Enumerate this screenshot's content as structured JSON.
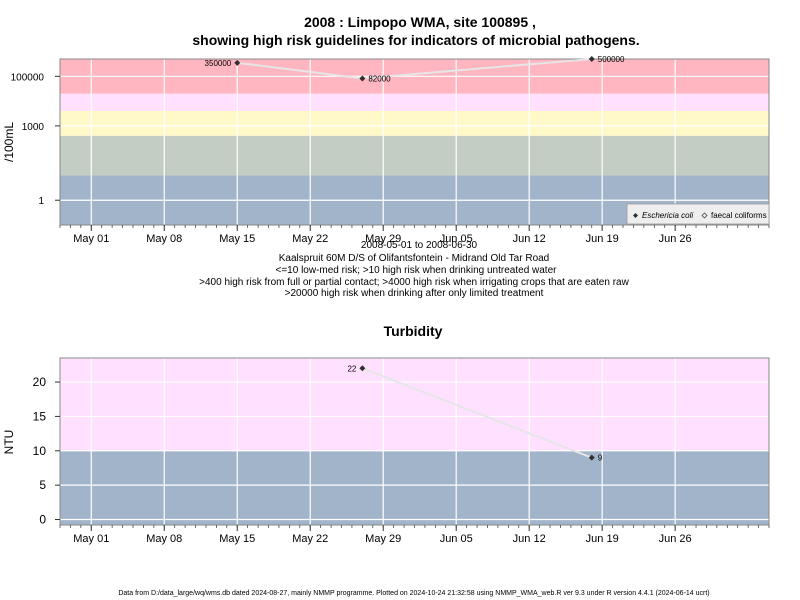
{
  "colors": {
    "red": "#ffb6c1",
    "pink": "#ffe0ff",
    "yellow": "#fff8c8",
    "sage": "#c4cdc4",
    "blue": "#a2b4ca",
    "grid": "#ffffff",
    "line": "#e6e6e6",
    "point": "#303030"
  },
  "footer": "Data from D:/data_large/wq/wms.db dated 2024-08-27, mainly NMMP programme. Plotted on 2024-10-24 21:32:58 using NMMP_WMA_web.R ver 9.3 under R version 4.4.1 (2024-06-14 ucrt)",
  "chart_data": [
    {
      "type": "line",
      "title": "2008 : Limpopo WMA, site 100895 ,",
      "title2": "showing high risk guidelines for indicators of microbial pathogens.",
      "ylabel": "/100mL",
      "y_scale": "log10",
      "ylim": [
        0.1,
        500000
      ],
      "xlim": [
        "2008-04-28",
        "2008-07-05"
      ],
      "x_ticks": [
        "May 01",
        "May 08",
        "May 15",
        "May 22",
        "May 29",
        "Jun 05",
        "Jun 12",
        "Jun 19",
        "Jun 26"
      ],
      "x_tick_dates": [
        "2008-05-01",
        "2008-05-08",
        "2008-05-15",
        "2008-05-22",
        "2008-05-29",
        "2008-06-05",
        "2008-06-12",
        "2008-06-19",
        "2008-06-26"
      ],
      "y_ticks": [
        "1",
        "1000",
        "100000"
      ],
      "y_tick_values": [
        1,
        1000,
        100000
      ],
      "bands": [
        {
          "from": 0.1,
          "to": 10,
          "color": "blue"
        },
        {
          "from": 10,
          "to": 400,
          "color": "sage"
        },
        {
          "from": 400,
          "to": 4000,
          "color": "yellow"
        },
        {
          "from": 4000,
          "to": 20000,
          "color": "pink"
        },
        {
          "from": 20000,
          "to": 500000,
          "color": "red"
        }
      ],
      "series": [
        {
          "name": "Eschericia coli",
          "points": [
            {
              "x": "2008-05-15",
              "y": 350000,
              "label": "350000"
            },
            {
              "x": "2008-05-27",
              "y": 82000,
              "label": "82000"
            },
            {
              "x": "2008-06-18",
              "y": 500000,
              "label": "500000"
            }
          ]
        }
      ],
      "legend": {
        "position": "bottom-right",
        "entries": [
          "Eschericia coli",
          "faecal coliforms"
        ]
      },
      "subtitle_lines": [
        "2008-05-01 to 2008-06-30",
        "Kaalspruit 60M D/S of Olifantsfontein - Midrand Old Tar Road",
        "<=10 low-med risk; >10 high risk when drinking untreated water",
        ">400 high risk from full or partial contact; >4000 high risk when irrigating crops that are eaten raw",
        ">20000 high risk when drinking after only limited treatment"
      ]
    },
    {
      "type": "line",
      "title": "Turbidity",
      "ylabel": "NTU",
      "ylim": [
        -0.8,
        23.5
      ],
      "xlim": [
        "2008-04-28",
        "2008-07-05"
      ],
      "x_ticks": [
        "May 01",
        "May 08",
        "May 15",
        "May 22",
        "May 29",
        "Jun 05",
        "Jun 12",
        "Jun 19",
        "Jun 26"
      ],
      "x_tick_dates": [
        "2008-05-01",
        "2008-05-08",
        "2008-05-15",
        "2008-05-22",
        "2008-05-29",
        "2008-06-05",
        "2008-06-12",
        "2008-06-19",
        "2008-06-26"
      ],
      "y_ticks": [
        "0",
        "5",
        "10",
        "15",
        "20"
      ],
      "y_tick_values": [
        0,
        5,
        10,
        15,
        20
      ],
      "bands": [
        {
          "from": -0.8,
          "to": 10,
          "color": "blue"
        },
        {
          "from": 10,
          "to": 23.5,
          "color": "pink"
        }
      ],
      "series": [
        {
          "points": [
            {
              "x": "2008-05-27",
              "y": 22,
              "label": "22"
            },
            {
              "x": "2008-06-18",
              "y": 9,
              "label": "9"
            }
          ]
        }
      ]
    }
  ]
}
